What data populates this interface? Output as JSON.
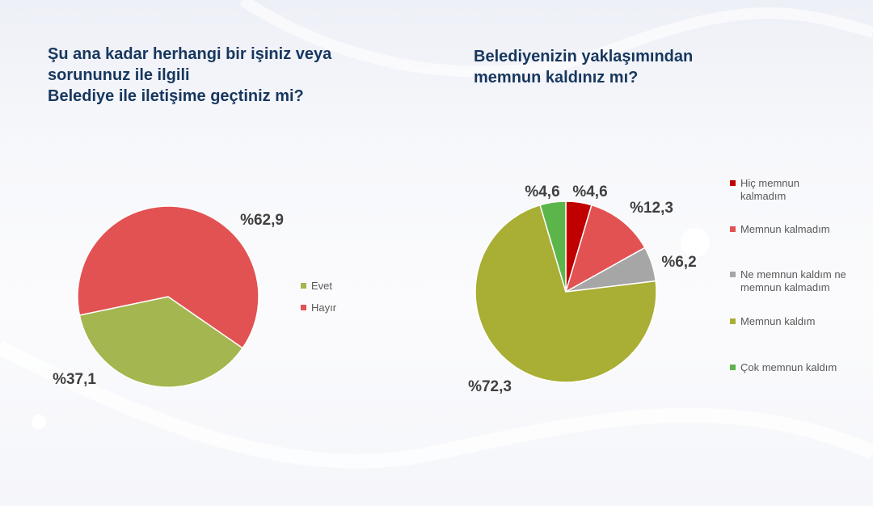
{
  "chart_data": [
    {
      "type": "pie",
      "title": "Şu ana kadar herhangi  bir işiniz veya\nsorununuz ile ilgili\nBelediye ile iletişime geçtiniz mi?",
      "categories": [
        "Evet",
        "Hayır"
      ],
      "values": [
        37.1,
        62.9
      ],
      "data_labels": [
        "%37,1",
        "%62,9"
      ],
      "colors": [
        "#a3b64f",
        "#e25252"
      ],
      "legend_position": "right"
    },
    {
      "type": "pie",
      "title": "Belediyenizin yaklaşımından\nmemnun kaldınız mı?",
      "categories": [
        "Hiç memnun kalmadım",
        "Memnun kalmadım",
        "Ne memnun kaldım ne memnun kalmadım",
        "Memnun kaldım",
        "Çok memnun kaldım"
      ],
      "values": [
        4.6,
        12.3,
        6.2,
        72.3,
        4.6
      ],
      "data_labels": [
        "%4,6",
        "%12,3",
        "%6,2",
        "%72,3",
        "%4,6"
      ],
      "colors": [
        "#c00000",
        "#e25252",
        "#a6a6a6",
        "#a9ae34",
        "#5cb54a"
      ],
      "legend_position": "right"
    }
  ]
}
